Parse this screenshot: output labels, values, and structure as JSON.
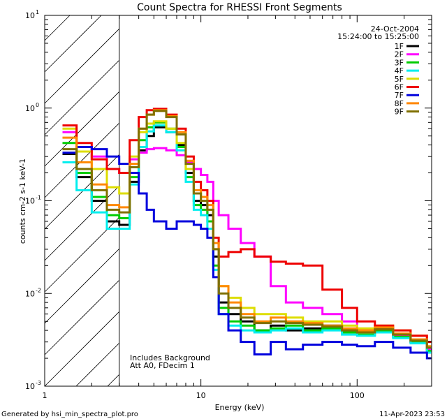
{
  "chart_data": {
    "type": "line",
    "title": "Count Spectra for RHESSI Front Segments",
    "xlabel": "Energy (keV)",
    "ylabel": "counts cm-2 s-1 keV-1",
    "xscale": "log",
    "yscale": "log",
    "xlim": [
      1,
      300
    ],
    "ylim": [
      0.001,
      10
    ],
    "x_ticks": [
      {
        "value": 1,
        "label": "1"
      },
      {
        "value": 10,
        "label": "10"
      },
      {
        "value": 100,
        "label": "100"
      }
    ],
    "y_ticks": [
      {
        "value": 0.001,
        "base": "10",
        "exp": "-3"
      },
      {
        "value": 0.01,
        "base": "10",
        "exp": "-2"
      },
      {
        "value": 0.1,
        "base": "10",
        "exp": "-1"
      },
      {
        "value": 1,
        "base": "10",
        "exp": "0"
      },
      {
        "value": 10,
        "base": "10",
        "exp": "1"
      }
    ],
    "date": "24-Oct-2004",
    "time_range": "15:24:00 to 15:25:00",
    "hatched_region_kev": [
      1,
      3
    ],
    "annotations": [
      "Includes Background",
      "Att A0, FDecim 1"
    ],
    "series": [
      {
        "name": "1F",
        "color": "#000000",
        "x": [
          1.3,
          1.6,
          2.0,
          2.5,
          3.0,
          3.5,
          4.0,
          4.5,
          5.0,
          6.0,
          7.0,
          8.0,
          9.0,
          10.0,
          11.0,
          12.0,
          13.0,
          15.0,
          18.0,
          22.0,
          28.0,
          35.0,
          45.0,
          60.0,
          80.0,
          100.0,
          130.0,
          170.0,
          220.0,
          280.0
        ],
        "y": [
          0.32,
          0.18,
          0.1,
          0.06,
          0.055,
          0.16,
          0.35,
          0.5,
          0.62,
          0.55,
          0.4,
          0.2,
          0.1,
          0.09,
          0.07,
          0.025,
          0.008,
          0.006,
          0.005,
          0.004,
          0.0045,
          0.004,
          0.0042,
          0.0045,
          0.004,
          0.0038,
          0.0042,
          0.0035,
          0.003,
          0.0025
        ]
      },
      {
        "name": "2F",
        "color": "#ff00ff",
        "x": [
          1.3,
          1.6,
          2.0,
          2.5,
          3.0,
          3.5,
          4.0,
          4.5,
          5.0,
          6.0,
          7.0,
          8.0,
          9.0,
          10.0,
          11.0,
          12.0,
          13.0,
          15.0,
          18.0,
          22.0,
          28.0,
          35.0,
          45.0,
          60.0,
          80.0,
          100.0,
          130.0,
          170.0,
          220.0,
          280.0
        ],
        "y": [
          0.55,
          0.38,
          0.3,
          0.22,
          0.2,
          0.28,
          0.33,
          0.36,
          0.37,
          0.35,
          0.31,
          0.26,
          0.22,
          0.19,
          0.16,
          0.1,
          0.07,
          0.05,
          0.035,
          0.025,
          0.012,
          0.008,
          0.007,
          0.006,
          0.005,
          0.004,
          0.0038,
          0.0035,
          0.003,
          0.0025
        ]
      },
      {
        "name": "3F",
        "color": "#00cc00",
        "x": [
          1.3,
          1.6,
          2.0,
          2.5,
          3.0,
          3.5,
          4.0,
          4.5,
          5.0,
          6.0,
          7.0,
          8.0,
          9.0,
          10.0,
          11.0,
          12.0,
          13.0,
          15.0,
          18.0,
          22.0,
          28.0,
          35.0,
          45.0,
          60.0,
          80.0,
          100.0,
          130.0,
          170.0,
          220.0,
          280.0
        ],
        "y": [
          0.42,
          0.2,
          0.11,
          0.07,
          0.065,
          0.18,
          0.45,
          0.62,
          0.7,
          0.6,
          0.38,
          0.18,
          0.09,
          0.08,
          0.06,
          0.02,
          0.007,
          0.005,
          0.0045,
          0.004,
          0.0042,
          0.0045,
          0.004,
          0.0042,
          0.0038,
          0.0036,
          0.004,
          0.0034,
          0.003,
          0.0024
        ]
      },
      {
        "name": "4F",
        "color": "#00eeee",
        "x": [
          1.3,
          1.6,
          2.0,
          2.5,
          3.0,
          3.5,
          4.0,
          4.5,
          5.0,
          6.0,
          7.0,
          8.0,
          9.0,
          10.0,
          11.0,
          12.0,
          13.0,
          15.0,
          18.0,
          22.0,
          28.0,
          35.0,
          45.0,
          60.0,
          80.0,
          100.0,
          130.0,
          170.0,
          220.0,
          280.0
        ],
        "y": [
          0.26,
          0.13,
          0.075,
          0.05,
          0.05,
          0.15,
          0.38,
          0.56,
          0.65,
          0.55,
          0.35,
          0.16,
          0.08,
          0.07,
          0.05,
          0.018,
          0.006,
          0.0045,
          0.004,
          0.0038,
          0.004,
          0.0042,
          0.0038,
          0.004,
          0.0036,
          0.0035,
          0.0038,
          0.0033,
          0.0029,
          0.0023
        ]
      },
      {
        "name": "5F",
        "color": "#dddd00",
        "x": [
          1.3,
          1.6,
          2.0,
          2.5,
          3.0,
          3.5,
          4.0,
          4.5,
          5.0,
          6.0,
          7.0,
          8.0,
          9.0,
          10.0,
          11.0,
          12.0,
          13.0,
          15.0,
          18.0,
          22.0,
          28.0,
          35.0,
          45.0,
          60.0,
          80.0,
          100.0,
          130.0,
          170.0,
          220.0,
          280.0
        ],
        "y": [
          0.6,
          0.34,
          0.22,
          0.14,
          0.12,
          0.3,
          0.55,
          0.68,
          0.72,
          0.6,
          0.42,
          0.22,
          0.12,
          0.1,
          0.08,
          0.03,
          0.012,
          0.009,
          0.007,
          0.006,
          0.006,
          0.0055,
          0.005,
          0.005,
          0.0045,
          0.0042,
          0.0045,
          0.004,
          0.0035,
          0.003
        ]
      },
      {
        "name": "6F",
        "color": "#ee0000",
        "x": [
          1.3,
          1.6,
          2.0,
          2.5,
          3.0,
          3.5,
          4.0,
          4.5,
          5.0,
          6.0,
          7.0,
          8.0,
          9.0,
          10.0,
          11.0,
          12.0,
          13.0,
          15.0,
          18.0,
          22.0,
          28.0,
          35.0,
          45.0,
          60.0,
          80.0,
          100.0,
          130.0,
          170.0,
          220.0,
          280.0
        ],
        "y": [
          0.65,
          0.42,
          0.28,
          0.22,
          0.2,
          0.45,
          0.8,
          0.95,
          0.98,
          0.85,
          0.6,
          0.3,
          0.16,
          0.13,
          0.1,
          0.04,
          0.025,
          0.028,
          0.03,
          0.025,
          0.022,
          0.021,
          0.02,
          0.011,
          0.007,
          0.005,
          0.0045,
          0.004,
          0.0035,
          0.003
        ]
      },
      {
        "name": "7F",
        "color": "#0000dd",
        "x": [
          1.3,
          1.6,
          2.0,
          2.5,
          3.0,
          3.5,
          4.0,
          4.5,
          5.0,
          6.0,
          7.0,
          8.0,
          9.0,
          10.0,
          11.0,
          12.0,
          13.0,
          15.0,
          18.0,
          22.0,
          28.0,
          35.0,
          45.0,
          60.0,
          80.0,
          100.0,
          130.0,
          170.0,
          220.0,
          280.0
        ],
        "y": [
          0.33,
          0.38,
          0.36,
          0.3,
          0.25,
          0.2,
          0.12,
          0.08,
          0.06,
          0.05,
          0.06,
          0.06,
          0.055,
          0.05,
          0.04,
          0.015,
          0.006,
          0.004,
          0.003,
          0.0022,
          0.003,
          0.0025,
          0.0028,
          0.003,
          0.0028,
          0.0027,
          0.003,
          0.0026,
          0.0023,
          0.002
        ]
      },
      {
        "name": "8F",
        "color": "#ff8800",
        "x": [
          1.3,
          1.6,
          2.0,
          2.5,
          3.0,
          3.5,
          4.0,
          4.5,
          5.0,
          6.0,
          7.0,
          8.0,
          9.0,
          10.0,
          11.0,
          12.0,
          13.0,
          15.0,
          18.0,
          22.0,
          28.0,
          35.0,
          45.0,
          60.0,
          80.0,
          100.0,
          130.0,
          170.0,
          220.0,
          280.0
        ],
        "y": [
          0.48,
          0.26,
          0.15,
          0.09,
          0.085,
          0.25,
          0.6,
          0.85,
          0.95,
          0.82,
          0.55,
          0.27,
          0.13,
          0.11,
          0.09,
          0.035,
          0.012,
          0.008,
          0.006,
          0.005,
          0.0055,
          0.005,
          0.0048,
          0.0045,
          0.0042,
          0.004,
          0.0043,
          0.0037,
          0.0032,
          0.0027
        ]
      },
      {
        "name": "9F",
        "color": "#807000",
        "x": [
          1.3,
          1.6,
          2.0,
          2.5,
          3.0,
          3.5,
          4.0,
          4.5,
          5.0,
          6.0,
          7.0,
          8.0,
          9.0,
          10.0,
          11.0,
          12.0,
          13.0,
          15.0,
          18.0,
          22.0,
          28.0,
          35.0,
          45.0,
          60.0,
          80.0,
          100.0,
          130.0,
          170.0,
          220.0,
          280.0
        ],
        "y": [
          0.36,
          0.22,
          0.13,
          0.08,
          0.075,
          0.23,
          0.6,
          0.85,
          0.93,
          0.8,
          0.52,
          0.25,
          0.12,
          0.1,
          0.08,
          0.03,
          0.01,
          0.007,
          0.0055,
          0.0048,
          0.005,
          0.0048,
          0.0046,
          0.0044,
          0.004,
          0.0038,
          0.0041,
          0.0036,
          0.0031,
          0.0026
        ]
      }
    ]
  },
  "footer": {
    "generator": "Generated by hsi_min_spectra_plot.pro",
    "timestamp": "11-Apr-2023 23:53"
  }
}
